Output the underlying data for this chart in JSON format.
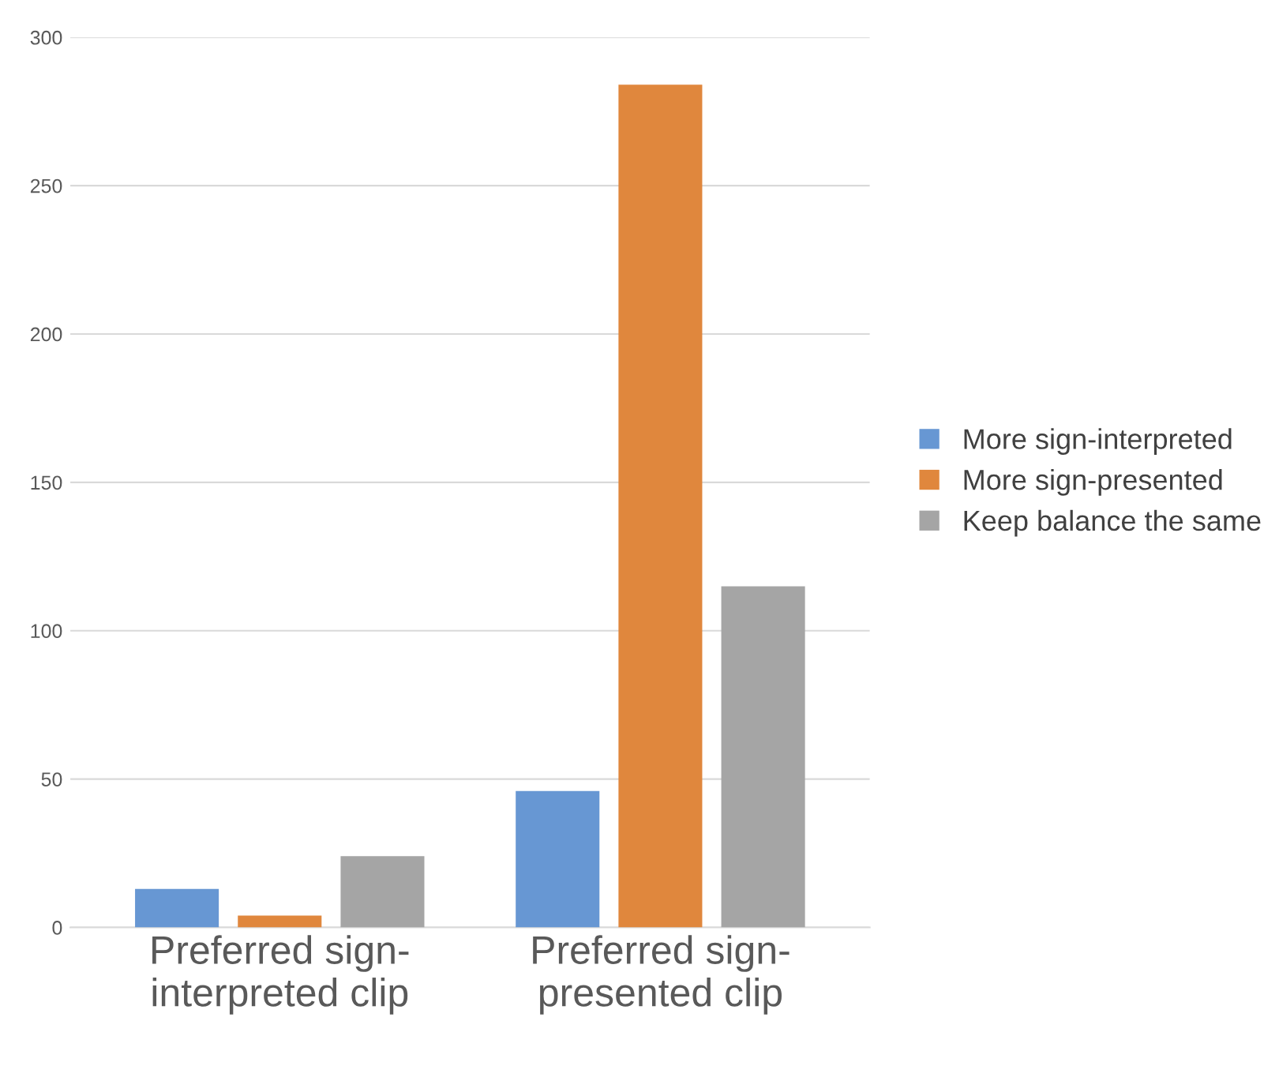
{
  "chart_data": {
    "type": "bar",
    "categories": [
      "Preferred sign-\ninterpreted clip",
      "Preferred sign-\npresented clip"
    ],
    "series": [
      {
        "name": "More sign-interpreted",
        "color": "#6797d3",
        "values": [
          13,
          46
        ]
      },
      {
        "name": "More sign-presented",
        "color": "#e0873d",
        "values": [
          4,
          284
        ]
      },
      {
        "name": "Keep balance the same",
        "color": "#a5a5a5",
        "values": [
          24,
          115
        ]
      }
    ],
    "ylim": [
      0,
      300
    ],
    "yticks": [
      0,
      50,
      100,
      150,
      200,
      250,
      300
    ],
    "grid": "y",
    "legend": "right"
  }
}
